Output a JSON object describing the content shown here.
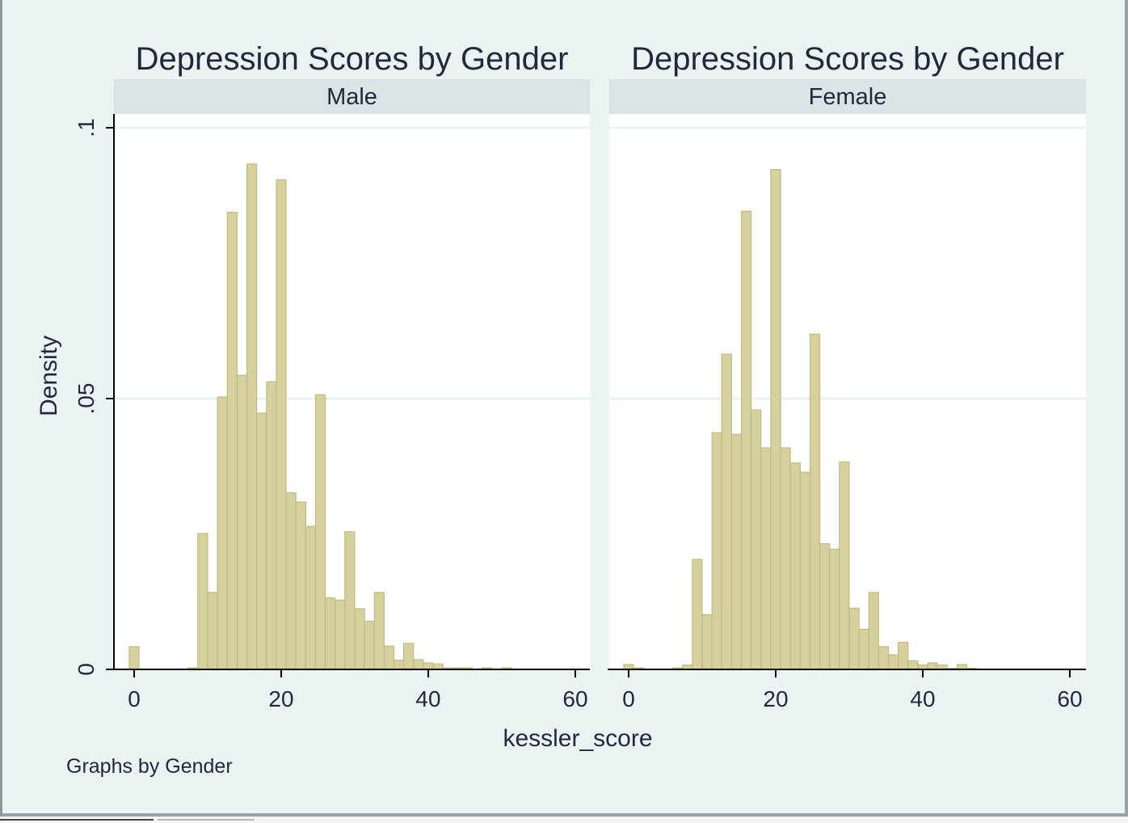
{
  "colors": {
    "background": "#eaf2f3",
    "plot_background": "#ffffff",
    "strip_background": "#d9e4e7",
    "bar_fill": "#d6d09c",
    "bar_stroke": "#c2bb84",
    "gridline": "#eaf2f3",
    "axis": "#000000",
    "text": "#1e2a3a"
  },
  "ylabel": "Density",
  "xlabel": "kessler_score",
  "note": "Graphs by Gender",
  "chart_data": [
    {
      "type": "bar",
      "title": "Depression Scores by Gender",
      "panel": "Male",
      "xlabel": "kessler_score",
      "ylabel": "Density",
      "xlim": [
        -3,
        62
      ],
      "ylim": [
        0,
        0.1
      ],
      "xticks": [
        "0",
        "20",
        "40",
        "60"
      ],
      "yticks": [
        "0",
        ".05",
        ".1"
      ],
      "grid": true,
      "bin_width": 1.33,
      "bins": [
        {
          "x": 0.0,
          "y": 0.0042
        },
        {
          "x": 8.0,
          "y": 0.0003
        },
        {
          "x": 9.33,
          "y": 0.0251
        },
        {
          "x": 10.67,
          "y": 0.0142
        },
        {
          "x": 12.0,
          "y": 0.0503
        },
        {
          "x": 13.33,
          "y": 0.0844
        },
        {
          "x": 14.67,
          "y": 0.0543
        },
        {
          "x": 16.0,
          "y": 0.0933
        },
        {
          "x": 17.33,
          "y": 0.0473
        },
        {
          "x": 18.67,
          "y": 0.0531
        },
        {
          "x": 20.0,
          "y": 0.0904
        },
        {
          "x": 21.33,
          "y": 0.0326
        },
        {
          "x": 22.67,
          "y": 0.0309
        },
        {
          "x": 24.0,
          "y": 0.0264
        },
        {
          "x": 25.33,
          "y": 0.0507
        },
        {
          "x": 26.67,
          "y": 0.0132
        },
        {
          "x": 28.0,
          "y": 0.0128
        },
        {
          "x": 29.33,
          "y": 0.0254
        },
        {
          "x": 30.67,
          "y": 0.0112
        },
        {
          "x": 32.0,
          "y": 0.0089
        },
        {
          "x": 33.33,
          "y": 0.0142
        },
        {
          "x": 34.67,
          "y": 0.0043
        },
        {
          "x": 36.0,
          "y": 0.0017
        },
        {
          "x": 37.33,
          "y": 0.0048
        },
        {
          "x": 38.67,
          "y": 0.0018
        },
        {
          "x": 40.0,
          "y": 0.0012
        },
        {
          "x": 41.33,
          "y": 0.001
        },
        {
          "x": 42.67,
          "y": 0.0003
        },
        {
          "x": 44.0,
          "y": 0.0003
        },
        {
          "x": 45.33,
          "y": 0.0003
        },
        {
          "x": 48.0,
          "y": 0.0003
        },
        {
          "x": 50.67,
          "y": 0.0003
        }
      ]
    },
    {
      "type": "bar",
      "title": "Depression Scores by Gender",
      "panel": "Female",
      "xlabel": "kessler_score",
      "ylabel": "Density",
      "xlim": [
        -3,
        62
      ],
      "ylim": [
        0,
        0.1
      ],
      "xticks": [
        "0",
        "20",
        "40",
        "60"
      ],
      "yticks": [
        "0",
        ".05",
        ".1"
      ],
      "grid": true,
      "bin_width": 1.33,
      "bins": [
        {
          "x": 0.0,
          "y": 0.0009
        },
        {
          "x": 1.33,
          "y": 0.0003
        },
        {
          "x": 6.67,
          "y": 0.0003
        },
        {
          "x": 8.0,
          "y": 0.0008
        },
        {
          "x": 9.33,
          "y": 0.0203
        },
        {
          "x": 10.67,
          "y": 0.0101
        },
        {
          "x": 12.0,
          "y": 0.0437
        },
        {
          "x": 13.33,
          "y": 0.0582
        },
        {
          "x": 14.67,
          "y": 0.0434
        },
        {
          "x": 16.0,
          "y": 0.0846
        },
        {
          "x": 17.33,
          "y": 0.0479
        },
        {
          "x": 18.67,
          "y": 0.0409
        },
        {
          "x": 20.0,
          "y": 0.0923
        },
        {
          "x": 21.33,
          "y": 0.0409
        },
        {
          "x": 22.67,
          "y": 0.0381
        },
        {
          "x": 24.0,
          "y": 0.0364
        },
        {
          "x": 25.33,
          "y": 0.0619
        },
        {
          "x": 26.67,
          "y": 0.0232
        },
        {
          "x": 28.0,
          "y": 0.0222
        },
        {
          "x": 29.33,
          "y": 0.0383
        },
        {
          "x": 30.67,
          "y": 0.0113
        },
        {
          "x": 32.0,
          "y": 0.0074
        },
        {
          "x": 33.33,
          "y": 0.0142
        },
        {
          "x": 34.67,
          "y": 0.0042
        },
        {
          "x": 36.0,
          "y": 0.0027
        },
        {
          "x": 37.33,
          "y": 0.005
        },
        {
          "x": 38.67,
          "y": 0.0016
        },
        {
          "x": 40.0,
          "y": 0.0008
        },
        {
          "x": 41.33,
          "y": 0.0012
        },
        {
          "x": 42.67,
          "y": 0.0008
        },
        {
          "x": 44.0,
          "y": 0.0002
        },
        {
          "x": 45.33,
          "y": 0.0009
        },
        {
          "x": 46.67,
          "y": 0.0002
        }
      ]
    }
  ]
}
